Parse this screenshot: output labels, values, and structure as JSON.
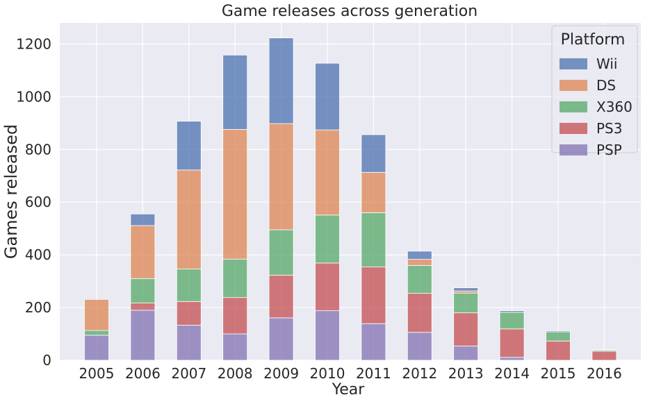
{
  "chart_data": {
    "type": "bar",
    "stacked": true,
    "title": "Game releases across generation",
    "xlabel": "Year",
    "ylabel": "Games released",
    "ylim": [
      0,
      1280
    ],
    "yticks": [
      0,
      200,
      400,
      600,
      800,
      1000,
      1200
    ],
    "grid": true,
    "legend": {
      "title": "Platform",
      "placement": "top-right"
    },
    "categories": [
      "2005",
      "2006",
      "2007",
      "2008",
      "2009",
      "2010",
      "2011",
      "2012",
      "2013",
      "2014",
      "2015",
      "2016"
    ],
    "series": [
      {
        "name": "PSP",
        "color": "#8172b3",
        "values": [
          95,
          190,
          133,
          100,
          161,
          188,
          139,
          106,
          54,
          11,
          0,
          0
        ]
      },
      {
        "name": "PS3",
        "color": "#c44e52",
        "values": [
          0,
          27,
          90,
          138,
          162,
          181,
          215,
          148,
          126,
          108,
          73,
          34
        ]
      },
      {
        "name": "X360",
        "color": "#55a868",
        "values": [
          18,
          93,
          123,
          146,
          172,
          182,
          206,
          106,
          75,
          63,
          35,
          4
        ]
      },
      {
        "name": "DS",
        "color": "#dd8452",
        "values": [
          118,
          201,
          376,
          492,
          403,
          323,
          153,
          23,
          8,
          0,
          0,
          0
        ]
      },
      {
        "name": "Wii",
        "color": "#4c72b0",
        "values": [
          0,
          44,
          185,
          282,
          325,
          253,
          143,
          31,
          12,
          6,
          4,
          1
        ]
      }
    ],
    "legend_order": [
      "Wii",
      "DS",
      "X360",
      "PS3",
      "PSP"
    ]
  }
}
